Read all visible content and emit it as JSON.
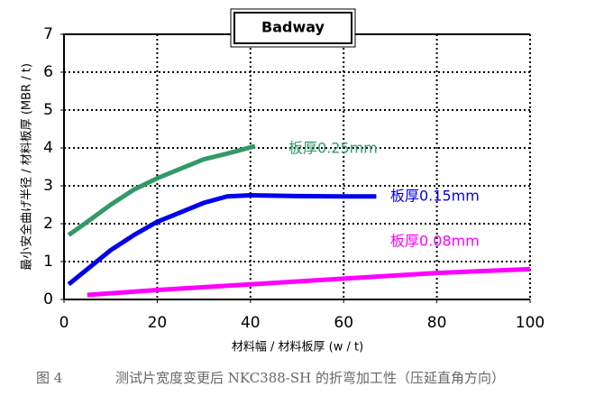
{
  "chart_data": {
    "type": "line",
    "title": "Badway",
    "x_label": "材料幅 / 材料板厚 (w / t)",
    "y_label": "最小安全曲げ半径 / 材料板厚 (MBR / t)",
    "xlim": [
      0,
      100
    ],
    "xticks": [
      0,
      20,
      40,
      60,
      80,
      100
    ],
    "ylim": [
      0,
      7
    ],
    "yticks": [
      0,
      1,
      2,
      3,
      4,
      5,
      6,
      7
    ],
    "grid": true,
    "series": [
      {
        "name": "板厚0.25mm",
        "color": "#339966",
        "x": [
          1,
          5,
          10,
          15,
          20,
          25,
          30,
          35,
          41
        ],
        "values": [
          1.7,
          2.05,
          2.5,
          2.9,
          3.2,
          3.45,
          3.7,
          3.85,
          4.05
        ]
      },
      {
        "name": "板厚0.15mm",
        "color": "#0000ee",
        "x": [
          1,
          5,
          10,
          15,
          20,
          25,
          30,
          35,
          40,
          50,
          60,
          67
        ],
        "values": [
          0.4,
          0.8,
          1.3,
          1.7,
          2.05,
          2.3,
          2.55,
          2.72,
          2.75,
          2.73,
          2.72,
          2.72
        ]
      },
      {
        "name": "板厚0.08mm",
        "color": "#ff00ff",
        "x": [
          5,
          20,
          40,
          60,
          80,
          100
        ],
        "values": [
          0.12,
          0.25,
          0.4,
          0.55,
          0.7,
          0.8
        ]
      }
    ]
  },
  "caption": {
    "figure": "图 4",
    "text": "测试片宽度变更后 NKC388-SH 的折弯加工性（压延直角方向）"
  }
}
